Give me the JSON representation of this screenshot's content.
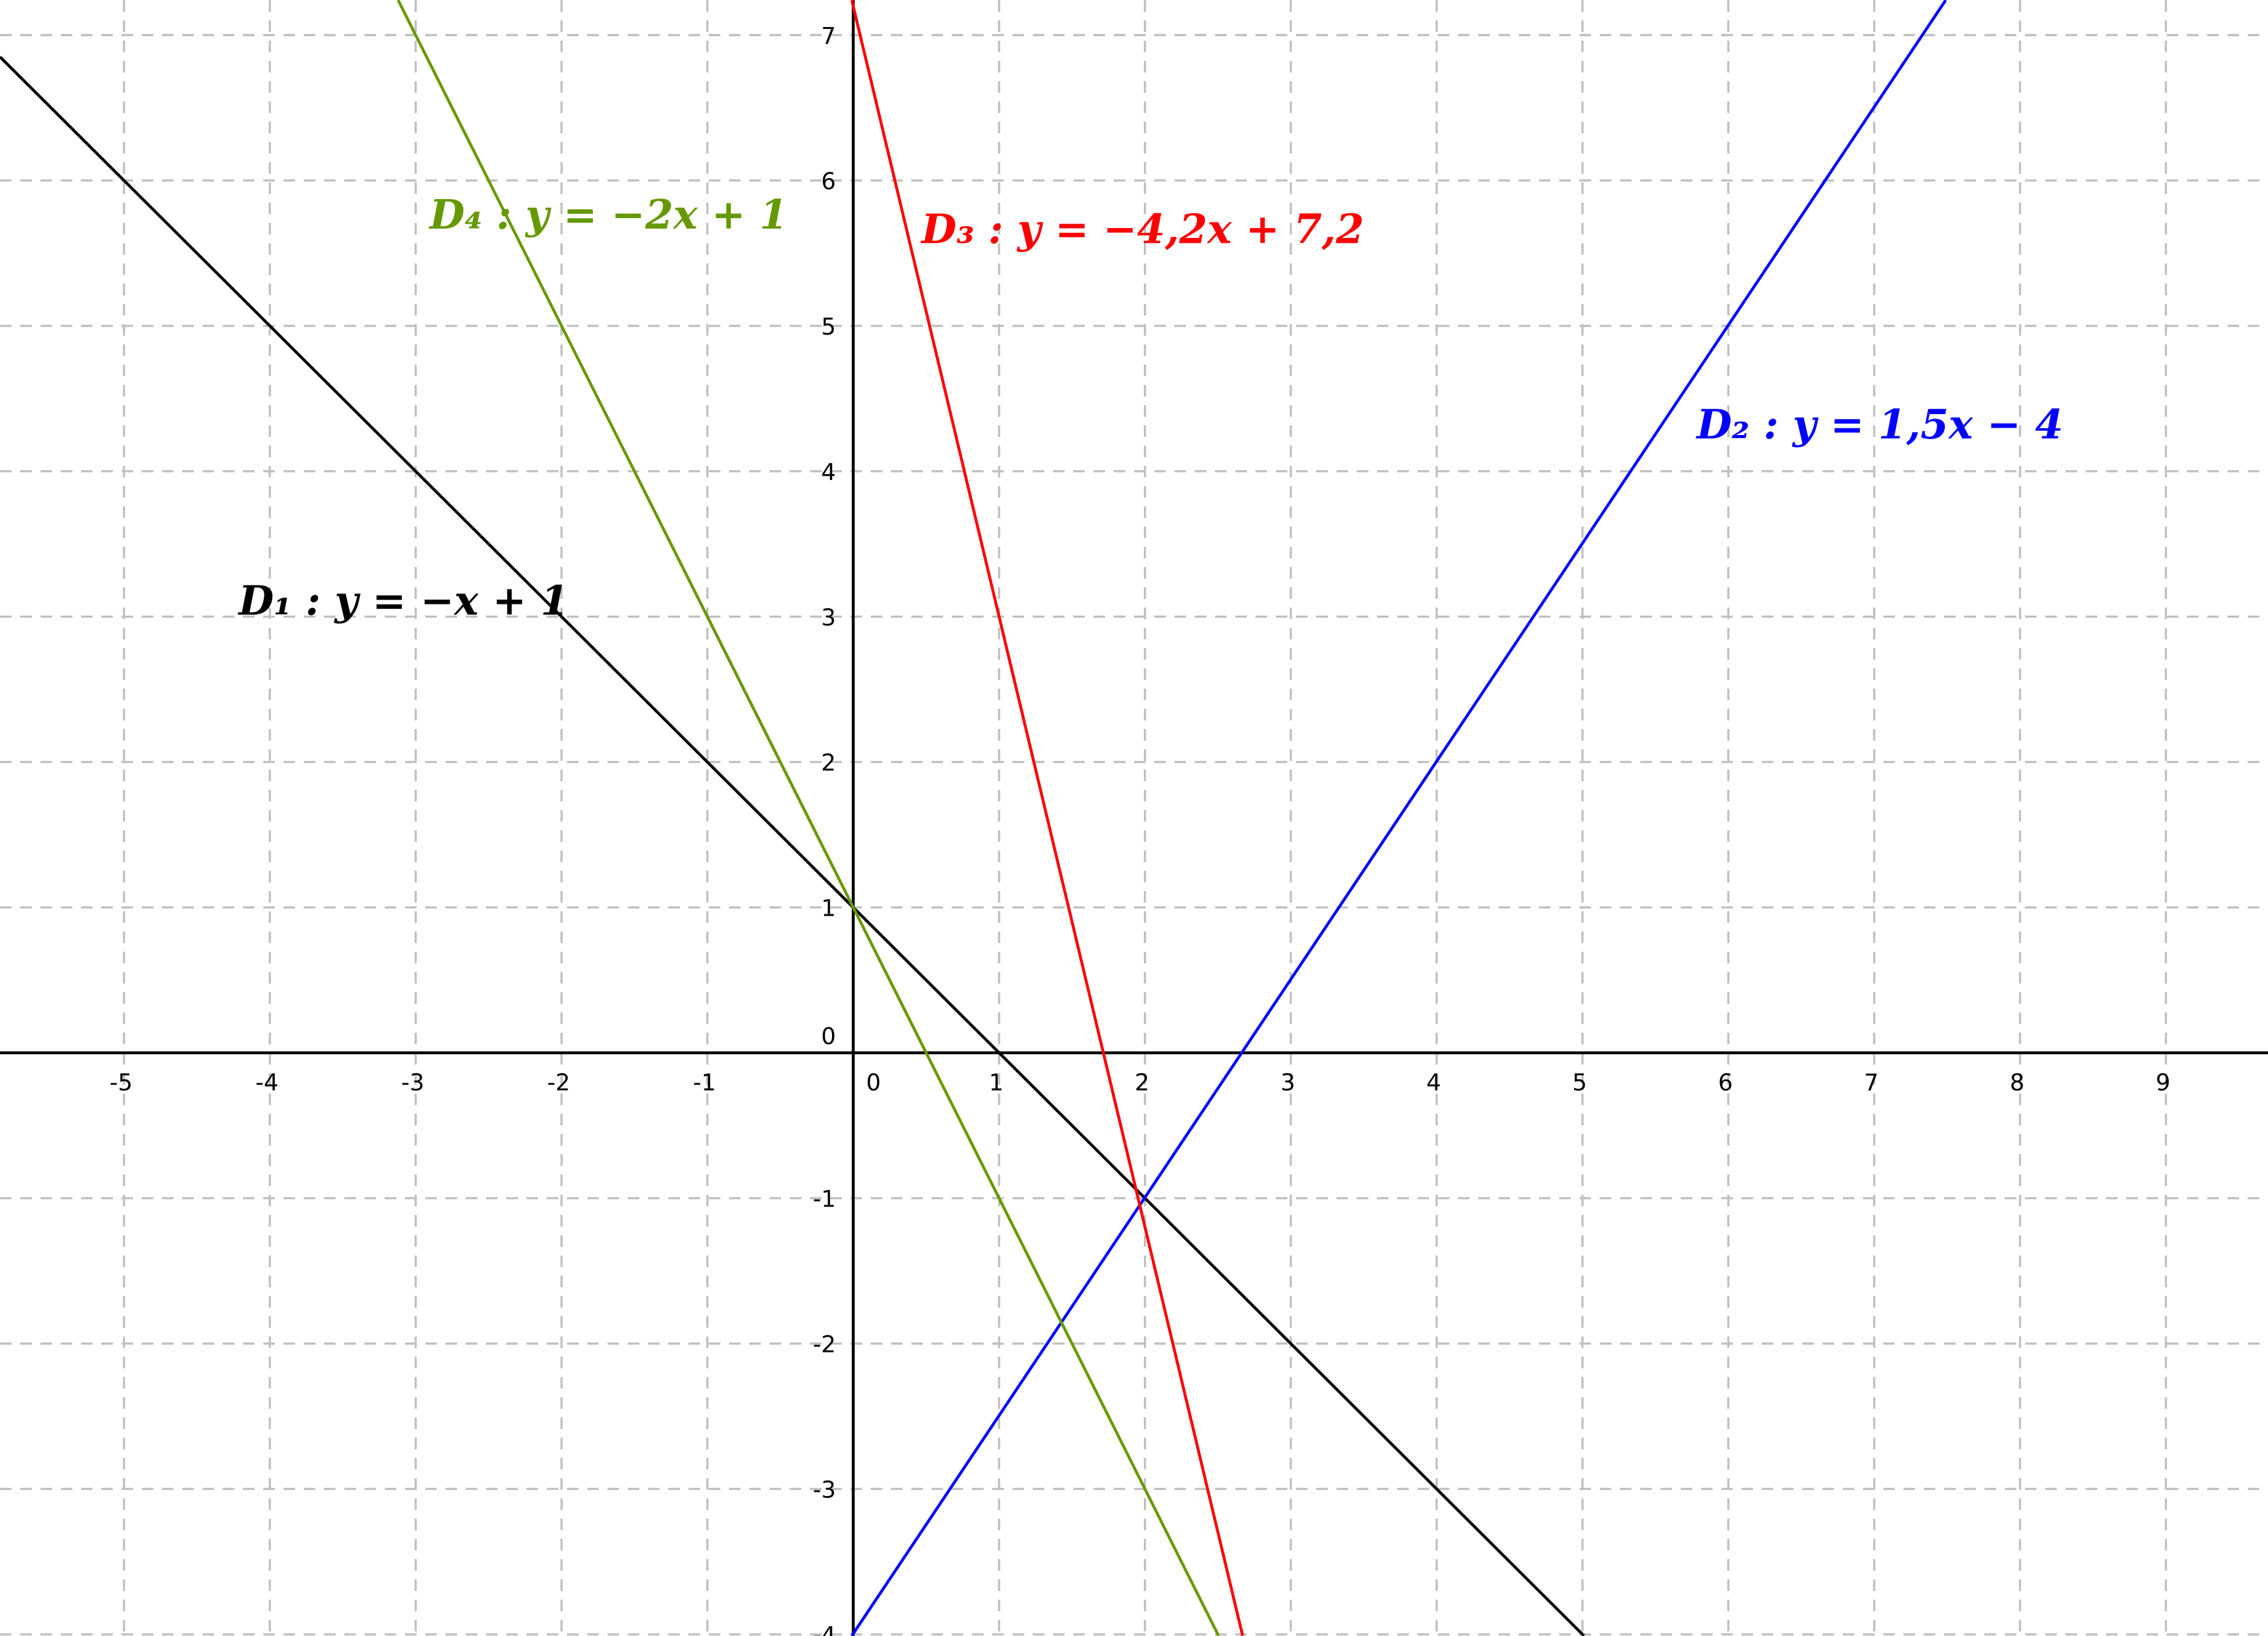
{
  "chart_data": {
    "type": "line",
    "xlim": [
      -5.85,
      9.7
    ],
    "ylim": [
      -4.01,
      7.24
    ],
    "xticks": [
      -5,
      -4,
      -3,
      -2,
      -1,
      0,
      1,
      2,
      3,
      4,
      5,
      6,
      7,
      8,
      9
    ],
    "yticks": [
      -4,
      -3,
      -2,
      -1,
      0,
      1,
      2,
      3,
      4,
      5,
      6,
      7
    ],
    "grid": true,
    "series": [
      {
        "name": "D₁ : y = −x + 1",
        "color": "#000000",
        "x": [
          -5.85,
          5.01
        ],
        "values": [
          6.85,
          -4.01
        ]
      },
      {
        "name": "D₂ : y = 1,5x − 4",
        "color": "#0000ff",
        "x": [
          -0.01,
          7.49
        ],
        "values": [
          -4.01,
          7.24
        ]
      },
      {
        "name": "D₃ : y = −4,2x + 7,2",
        "color": "#ff0000",
        "x": [
          -0.01,
          2.67
        ],
        "values": [
          7.24,
          -4.01
        ]
      },
      {
        "name": "D₄ : y = −2x + 1",
        "color": "#669900",
        "x": [
          -3.12,
          2.505
        ],
        "values": [
          7.24,
          -4.01
        ]
      }
    ]
  }
}
